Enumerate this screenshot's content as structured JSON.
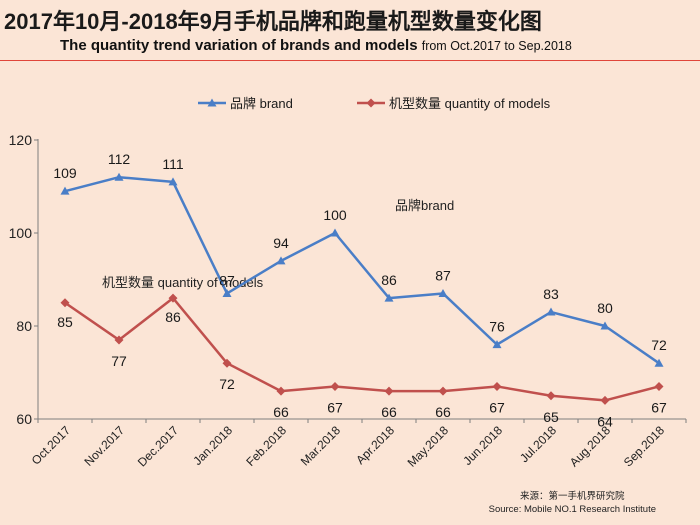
{
  "title_cn": "2017年10月-2018年9月手机品牌和跑量机型数量变化图",
  "title_en": "The quantity trend variation of brands and models",
  "title_en_range": "from  Oct.2017 to Sep.2018",
  "source_cn": "来源：第一手机界研究院",
  "source_en": "Source: Mobile NO.1 Research Institute",
  "colors": {
    "brand": "#4a7ec7",
    "models": "#c0504d",
    "axis": "#7f7f7f"
  },
  "chart_data": {
    "type": "line",
    "categories": [
      "Oct.2017",
      "Nov.2017",
      "Dec.2017",
      "Jan.2018",
      "Feb.2018",
      "Mar.2018",
      "Apr.2018",
      "May.2018",
      "Jun.2018",
      "Jul.2018",
      "Aug.2018",
      "Sep.2018"
    ],
    "series": [
      {
        "name": "品牌 brand",
        "marker": "triangle",
        "values": [
          109,
          112,
          111,
          87,
          94,
          100,
          86,
          87,
          76,
          83,
          80,
          72
        ]
      },
      {
        "name": "机型数量 quantity of models",
        "marker": "diamond",
        "values": [
          85,
          77,
          86,
          72,
          66,
          67,
          66,
          66,
          67,
          65,
          64,
          67
        ]
      }
    ],
    "annotations": [
      "品牌brand",
      "机型数量 quantity of models"
    ],
    "ylim": [
      60,
      120
    ],
    "yticks": [
      60,
      80,
      100,
      120
    ],
    "legend": "top",
    "grid": false
  }
}
